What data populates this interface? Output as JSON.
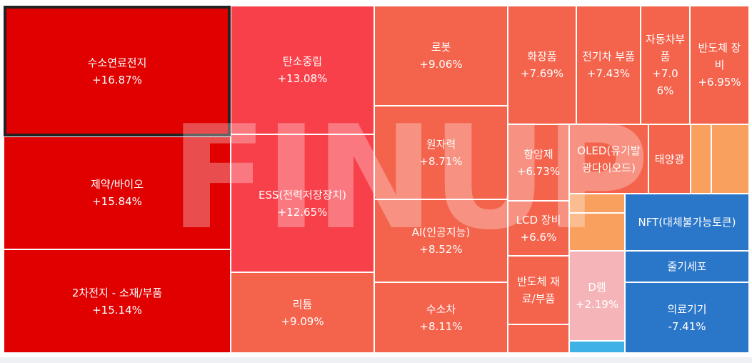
{
  "chart_data": {
    "type": "treemap",
    "watermark": "FINUP",
    "categories": [
      "수소연료전지",
      "제약/바이오",
      "2차전지 - 소재/부품",
      "탄소중립",
      "ESS(전력저장장치)",
      "리튬",
      "로봇",
      "원자력",
      "AI(인공지능)",
      "수소차",
      "화장품",
      "전기차 부품",
      "자동차부품",
      "반도체 장비",
      "항암제",
      "OLED(유기발광다이오드)",
      "태양광",
      "LCD 장비",
      "반도체 재료/부품",
      "D램",
      "NFT(대체불가능토큰)",
      "줄기세포",
      "의료기기"
    ],
    "values": [
      16.87,
      15.84,
      15.14,
      13.08,
      12.65,
      9.09,
      9.06,
      8.71,
      8.52,
      8.11,
      7.69,
      7.43,
      7.06,
      6.95,
      6.73,
      null,
      null,
      6.6,
      null,
      2.19,
      null,
      null,
      -7.41
    ],
    "value_labels": [
      "+16.87%",
      "+15.84%",
      "+15.14%",
      "+13.08%",
      "+12.65%",
      "+9.09%",
      "+9.06%",
      "+8.71%",
      "+8.52%",
      "+8.11%",
      "+7.69%",
      "+7.43%",
      "+7.06%",
      "+6.95%",
      "+6.73%",
      null,
      null,
      "+6.6%",
      null,
      "+2.19%",
      null,
      null,
      "-7.41%"
    ],
    "colors": [
      "#e00000",
      "#e00000",
      "#e00000",
      "#f8404a",
      "#f8404a",
      "#f4634c",
      "#f4634c",
      "#f4634c",
      "#f4634c",
      "#f4634c",
      "#f4634c",
      "#f4634c",
      "#f4634c",
      "#f4634c",
      "#f4634c",
      "#f4634c",
      "#f4634c",
      "#f4634c",
      "#f4634c",
      "#f5b5b8",
      "#2a76c9",
      "#2a76c9",
      "#2a76c9"
    ],
    "selected": 0
  }
}
